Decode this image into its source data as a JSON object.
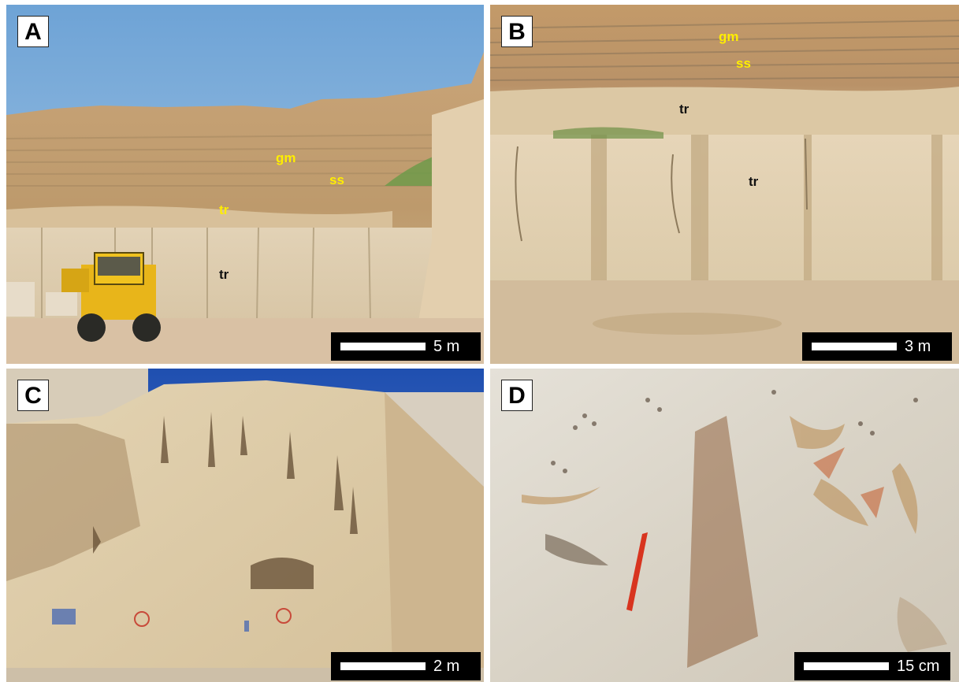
{
  "panels": {
    "a": {
      "letter": "A",
      "labels": {
        "gm": "gm",
        "ss": "ss",
        "tr_upper": "tr",
        "tr_lower": "tr"
      },
      "scale": "5 m"
    },
    "b": {
      "letter": "B",
      "labels": {
        "gm": "gm",
        "ss": "ss",
        "tr_upper": "tr",
        "tr_lower": "tr"
      },
      "scale": "3 m"
    },
    "c": {
      "letter": "C",
      "scale": "2 m"
    },
    "d": {
      "letter": "D",
      "scale": "15 cm"
    }
  },
  "colors": {
    "label_yellow": "#ffee00",
    "label_black": "#111111",
    "sky": "#7fb0da",
    "travertine": "#dccfb2"
  }
}
